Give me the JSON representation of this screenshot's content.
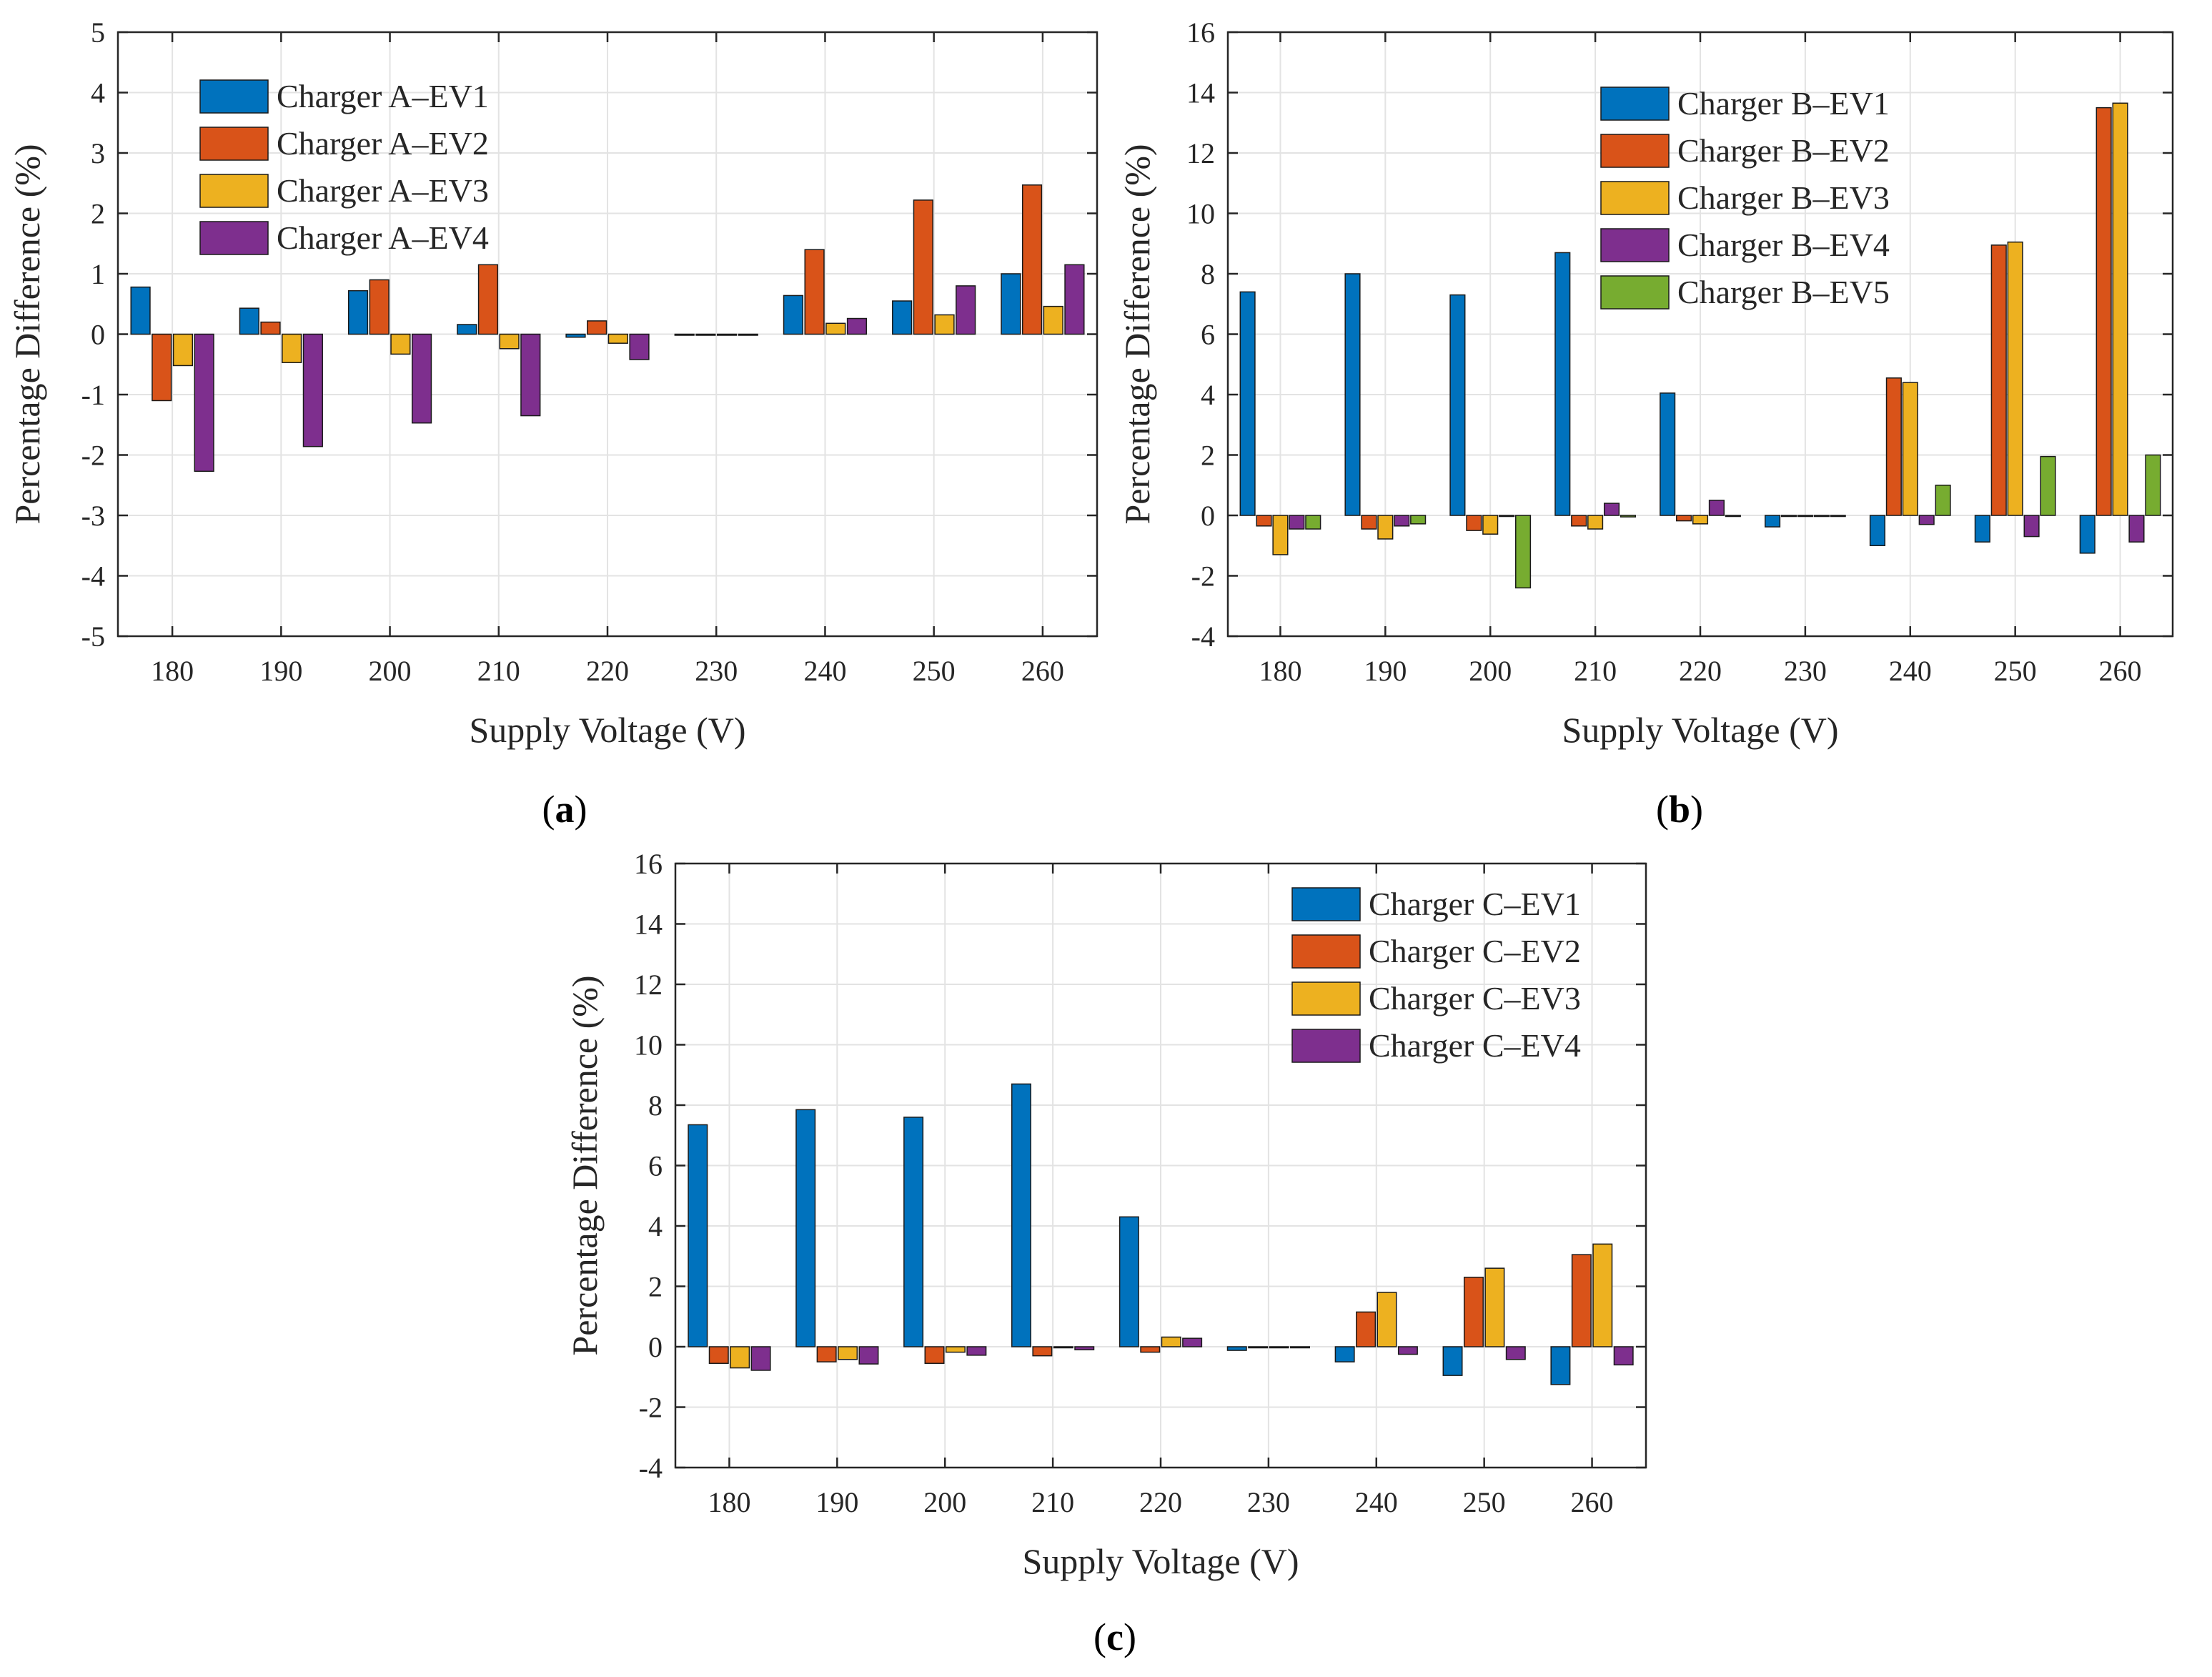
{
  "colors": {
    "EV1": "#0072BD",
    "EV2": "#D95319",
    "EV3": "#EDB120",
    "EV4": "#7E2F8E",
    "EV5": "#77AC30"
  },
  "chart_data": [
    {
      "type": "bar",
      "panel_label": "a",
      "categories": [
        "180",
        "190",
        "200",
        "210",
        "220",
        "230",
        "240",
        "250",
        "260"
      ],
      "xlabel": "Supply Voltage (V)",
      "ylabel": "Percentage Difference (%)",
      "ylim": [
        -5,
        5
      ],
      "yticks": [
        -5,
        -4,
        -3,
        -2,
        -1,
        0,
        1,
        2,
        3,
        4,
        5
      ],
      "grid": true,
      "legend_position": "top-left",
      "series": [
        {
          "name": "Charger A–EV1",
          "color_key": "EV1",
          "values": [
            0.78,
            0.43,
            0.72,
            0.16,
            -0.05,
            0.0,
            0.64,
            0.55,
            1.0
          ]
        },
        {
          "name": "Charger A–EV2",
          "color_key": "EV2",
          "values": [
            -1.1,
            0.2,
            0.9,
            1.15,
            0.22,
            0.0,
            1.4,
            2.22,
            2.47
          ]
        },
        {
          "name": "Charger A–EV3",
          "color_key": "EV3",
          "values": [
            -0.52,
            -0.47,
            -0.33,
            -0.24,
            -0.15,
            0.0,
            0.18,
            0.32,
            0.46
          ]
        },
        {
          "name": "Charger A–EV4",
          "color_key": "EV4",
          "values": [
            -2.27,
            -1.86,
            -1.47,
            -1.35,
            -0.42,
            0.0,
            0.26,
            0.8,
            1.15
          ]
        }
      ]
    },
    {
      "type": "bar",
      "panel_label": "b",
      "categories": [
        "180",
        "190",
        "200",
        "210",
        "220",
        "230",
        "240",
        "250",
        "260"
      ],
      "xlabel": "Supply Voltage (V)",
      "ylabel": "Percentage Difference (%)",
      "ylim": [
        -4,
        16
      ],
      "yticks": [
        -4,
        -2,
        0,
        2,
        4,
        6,
        8,
        10,
        12,
        14,
        16
      ],
      "grid": true,
      "legend_position": "top-right",
      "series": [
        {
          "name": "Charger B–EV1",
          "color_key": "EV1",
          "values": [
            7.4,
            8.0,
            7.3,
            8.7,
            4.05,
            -0.38,
            -1.0,
            -0.88,
            -1.25
          ]
        },
        {
          "name": "Charger B–EV2",
          "color_key": "EV2",
          "values": [
            -0.35,
            -0.45,
            -0.5,
            -0.35,
            -0.18,
            0.0,
            4.55,
            8.95,
            13.5
          ]
        },
        {
          "name": "Charger B–EV3",
          "color_key": "EV3",
          "values": [
            -1.3,
            -0.78,
            -0.62,
            -0.45,
            -0.28,
            0.0,
            4.4,
            9.05,
            13.65
          ]
        },
        {
          "name": "Charger B–EV4",
          "color_key": "EV4",
          "values": [
            -0.45,
            -0.35,
            0.0,
            0.4,
            0.5,
            0.0,
            -0.3,
            -0.7,
            -0.88
          ]
        },
        {
          "name": "Charger B–EV5",
          "color_key": "EV5",
          "values": [
            -0.45,
            -0.28,
            -2.4,
            -0.05,
            0.0,
            0.0,
            1.0,
            1.95,
            2.0
          ]
        }
      ]
    },
    {
      "type": "bar",
      "panel_label": "c",
      "categories": [
        "180",
        "190",
        "200",
        "210",
        "220",
        "230",
        "240",
        "250",
        "260"
      ],
      "xlabel": "Supply Voltage (V)",
      "ylabel": "Percentage Difference (%)",
      "ylim": [
        -4,
        16
      ],
      "yticks": [
        -4,
        -2,
        0,
        2,
        4,
        6,
        8,
        10,
        12,
        14,
        16
      ],
      "grid": true,
      "legend_position": "top-right",
      "series": [
        {
          "name": "Charger C–EV1",
          "color_key": "EV1",
          "values": [
            7.35,
            7.85,
            7.6,
            8.7,
            4.3,
            -0.12,
            -0.5,
            -0.95,
            -1.25
          ]
        },
        {
          "name": "Charger C–EV2",
          "color_key": "EV2",
          "values": [
            -0.55,
            -0.5,
            -0.55,
            -0.3,
            -0.18,
            0.0,
            1.15,
            2.3,
            3.05
          ]
        },
        {
          "name": "Charger C–EV3",
          "color_key": "EV3",
          "values": [
            -0.7,
            -0.42,
            -0.18,
            0.0,
            0.32,
            0.0,
            1.8,
            2.6,
            3.4
          ]
        },
        {
          "name": "Charger C–EV4",
          "color_key": "EV4",
          "values": [
            -0.78,
            -0.57,
            -0.28,
            -0.1,
            0.28,
            0.0,
            -0.25,
            -0.42,
            -0.6
          ]
        }
      ]
    }
  ]
}
